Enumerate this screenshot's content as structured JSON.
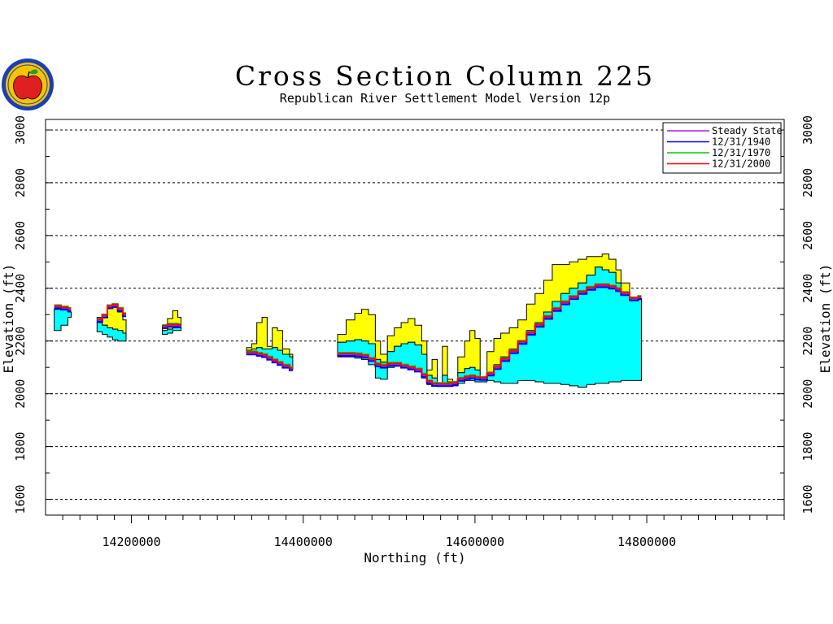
{
  "logo": {
    "icon": "apple-seal-icon",
    "colors": {
      "ring": "#1a3fb5",
      "fill": "#f5c400",
      "apple": "#e02020",
      "leaf": "#22a020"
    }
  },
  "chart_data": {
    "type": "area",
    "title": "Cross Section Column 225",
    "subtitle": "Republican River Settlement Model Version 12p",
    "xlabel": "Northing (ft)",
    "ylabel": "Elevation (ft)",
    "xlim": [
      14100000,
      14960000
    ],
    "ylim": [
      1540,
      3040
    ],
    "xticks": [
      {
        "value": 14200000,
        "label": "14200000"
      },
      {
        "value": 14400000,
        "label": "14400000"
      },
      {
        "value": 14600000,
        "label": "14600000"
      },
      {
        "value": 14800000,
        "label": "14800000"
      }
    ],
    "yticks": [
      {
        "value": 1600,
        "label": "1600"
      },
      {
        "value": 1800,
        "label": "1800"
      },
      {
        "value": 2000,
        "label": "2000"
      },
      {
        "value": 2200,
        "label": "2200"
      },
      {
        "value": 2400,
        "label": "2400"
      },
      {
        "value": 2600,
        "label": "2600"
      },
      {
        "value": 2800,
        "label": "2800"
      },
      {
        "value": 3000,
        "label": "3000"
      }
    ],
    "grid": "horizontal-dashed",
    "legend_position": "top-right",
    "colors": {
      "upper_layer": "#ffff00",
      "lower_layer": "#00ffff",
      "outline": "#000000"
    },
    "series": [
      {
        "name": "Steady State",
        "color": "#a020f0"
      },
      {
        "name": "12/31/1940",
        "color": "#0000ff"
      },
      {
        "name": "12/31/1970",
        "color": "#00cc00"
      },
      {
        "name": "12/31/2000",
        "color": "#ff0000"
      }
    ],
    "segments": [
      {
        "x": [
          14110000,
          14126000
        ],
        "top": [
          [
            14110000,
            2320
          ],
          [
            14118000,
            2325
          ],
          [
            14126000,
            2310
          ]
        ],
        "mid": [
          [
            14110000,
            2320
          ],
          [
            14118000,
            2325
          ],
          [
            14126000,
            2310
          ]
        ],
        "bottom": [
          [
            14110000,
            2240
          ],
          [
            14118000,
            2260
          ],
          [
            14126000,
            2290
          ]
        ],
        "head": [
          [
            14110000,
            2330
          ],
          [
            14118000,
            2325
          ],
          [
            14126000,
            2320
          ]
        ],
        "steady": [
          14110000,
          14126000
        ]
      },
      {
        "x": [
          14160000,
          14190000
        ],
        "top": [
          [
            14160000,
            2290
          ],
          [
            14166000,
            2300
          ],
          [
            14172000,
            2330
          ],
          [
            14178000,
            2330
          ],
          [
            14184000,
            2310
          ],
          [
            14190000,
            2280
          ]
        ],
        "mid": [
          [
            14160000,
            2270
          ],
          [
            14166000,
            2260
          ],
          [
            14172000,
            2250
          ],
          [
            14178000,
            2245
          ],
          [
            14184000,
            2240
          ],
          [
            14190000,
            2230
          ]
        ],
        "bottom": [
          [
            14160000,
            2235
          ],
          [
            14166000,
            2225
          ],
          [
            14172000,
            2215
          ],
          [
            14178000,
            2205
          ],
          [
            14184000,
            2200
          ],
          [
            14190000,
            2200
          ]
        ],
        "head": [
          [
            14160000,
            2280
          ],
          [
            14166000,
            2295
          ],
          [
            14172000,
            2330
          ],
          [
            14178000,
            2335
          ],
          [
            14184000,
            2320
          ],
          [
            14190000,
            2300
          ]
        ]
      },
      {
        "x": [
          14236000,
          14254000
        ],
        "top": [
          [
            14236000,
            2260
          ],
          [
            14242000,
            2285
          ],
          [
            14248000,
            2315
          ],
          [
            14254000,
            2290
          ]
        ],
        "mid": [
          [
            14236000,
            2240
          ],
          [
            14242000,
            2245
          ],
          [
            14248000,
            2250
          ],
          [
            14254000,
            2250
          ]
        ],
        "bottom": [
          [
            14236000,
            2225
          ],
          [
            14242000,
            2230
          ],
          [
            14248000,
            2240
          ],
          [
            14254000,
            2240
          ]
        ],
        "head": [
          [
            14236000,
            2255
          ],
          [
            14242000,
            2260
          ],
          [
            14248000,
            2260
          ],
          [
            14254000,
            2258
          ]
        ]
      },
      {
        "x": [
          14334000,
          14384000
        ],
        "top": [
          [
            14334000,
            2175
          ],
          [
            14340000,
            2190
          ],
          [
            14346000,
            2270
          ],
          [
            14352000,
            2290
          ],
          [
            14358000,
            2180
          ],
          [
            14364000,
            2250
          ],
          [
            14370000,
            2240
          ],
          [
            14376000,
            2170
          ],
          [
            14384000,
            2150
          ]
        ],
        "mid": [
          [
            14334000,
            2165
          ],
          [
            14340000,
            2170
          ],
          [
            14346000,
            2175
          ],
          [
            14352000,
            2170
          ],
          [
            14358000,
            2170
          ],
          [
            14364000,
            2175
          ],
          [
            14370000,
            2165
          ],
          [
            14376000,
            2150
          ],
          [
            14384000,
            2140
          ]
        ],
        "bottom": [
          [
            14334000,
            2150
          ],
          [
            14340000,
            2150
          ],
          [
            14346000,
            2145
          ],
          [
            14352000,
            2140
          ],
          [
            14358000,
            2130
          ],
          [
            14364000,
            2120
          ],
          [
            14370000,
            2110
          ],
          [
            14376000,
            2100
          ],
          [
            14384000,
            2090
          ]
        ],
        "head": [
          [
            14334000,
            2155
          ],
          [
            14340000,
            2155
          ],
          [
            14346000,
            2150
          ],
          [
            14352000,
            2145
          ],
          [
            14358000,
            2135
          ],
          [
            14364000,
            2125
          ],
          [
            14370000,
            2115
          ],
          [
            14376000,
            2105
          ],
          [
            14384000,
            2095
          ]
        ]
      },
      {
        "x": [
          14440000,
          14790000
        ],
        "top": [
          [
            14440000,
            2225
          ],
          [
            14450000,
            2280
          ],
          [
            14460000,
            2305
          ],
          [
            14468000,
            2320
          ],
          [
            14476000,
            2300
          ],
          [
            14484000,
            2200
          ],
          [
            14490000,
            2150
          ],
          [
            14498000,
            2220
          ],
          [
            14506000,
            2250
          ],
          [
            14514000,
            2270
          ],
          [
            14522000,
            2285
          ],
          [
            14530000,
            2260
          ],
          [
            14538000,
            2200
          ],
          [
            14544000,
            2090
          ],
          [
            14550000,
            2130
          ],
          [
            14556000,
            2040
          ],
          [
            14562000,
            2180
          ],
          [
            14568000,
            2055
          ],
          [
            14574000,
            2040
          ],
          [
            14580000,
            2140
          ],
          [
            14588000,
            2200
          ],
          [
            14594000,
            2240
          ],
          [
            14600000,
            2210
          ],
          [
            14606000,
            2060
          ],
          [
            14614000,
            2160
          ],
          [
            14622000,
            2210
          ],
          [
            14630000,
            2230
          ],
          [
            14640000,
            2250
          ],
          [
            14650000,
            2280
          ],
          [
            14660000,
            2340
          ],
          [
            14670000,
            2380
          ],
          [
            14680000,
            2430
          ],
          [
            14690000,
            2490
          ],
          [
            14700000,
            2490
          ],
          [
            14710000,
            2500
          ],
          [
            14720000,
            2510
          ],
          [
            14730000,
            2520
          ],
          [
            14740000,
            2520
          ],
          [
            14748000,
            2530
          ],
          [
            14756000,
            2510
          ],
          [
            14764000,
            2470
          ],
          [
            14770000,
            2420
          ],
          [
            14780000,
            2360
          ],
          [
            14790000,
            2350
          ]
        ],
        "mid": [
          [
            14440000,
            2195
          ],
          [
            14450000,
            2200
          ],
          [
            14460000,
            2205
          ],
          [
            14468000,
            2200
          ],
          [
            14476000,
            2190
          ],
          [
            14484000,
            2130
          ],
          [
            14490000,
            2120
          ],
          [
            14498000,
            2160
          ],
          [
            14506000,
            2180
          ],
          [
            14514000,
            2190
          ],
          [
            14522000,
            2195
          ],
          [
            14530000,
            2185
          ],
          [
            14538000,
            2150
          ],
          [
            14544000,
            2070
          ],
          [
            14550000,
            2060
          ],
          [
            14556000,
            2040
          ],
          [
            14562000,
            2070
          ],
          [
            14568000,
            2045
          ],
          [
            14574000,
            2040
          ],
          [
            14580000,
            2080
          ],
          [
            14588000,
            2095
          ],
          [
            14594000,
            2100
          ],
          [
            14600000,
            2090
          ],
          [
            14606000,
            2060
          ],
          [
            14614000,
            2080
          ],
          [
            14622000,
            2110
          ],
          [
            14630000,
            2140
          ],
          [
            14640000,
            2170
          ],
          [
            14650000,
            2200
          ],
          [
            14660000,
            2240
          ],
          [
            14670000,
            2270
          ],
          [
            14680000,
            2310
          ],
          [
            14690000,
            2350
          ],
          [
            14700000,
            2380
          ],
          [
            14710000,
            2400
          ],
          [
            14720000,
            2420
          ],
          [
            14730000,
            2450
          ],
          [
            14740000,
            2480
          ],
          [
            14748000,
            2470
          ],
          [
            14756000,
            2460
          ],
          [
            14764000,
            2420
          ],
          [
            14770000,
            2380
          ],
          [
            14780000,
            2360
          ],
          [
            14790000,
            2360
          ]
        ],
        "bottom": [
          [
            14440000,
            2140
          ],
          [
            14450000,
            2140
          ],
          [
            14460000,
            2135
          ],
          [
            14468000,
            2130
          ],
          [
            14476000,
            2110
          ],
          [
            14484000,
            2060
          ],
          [
            14490000,
            2055
          ],
          [
            14498000,
            2100
          ],
          [
            14506000,
            2105
          ],
          [
            14514000,
            2100
          ],
          [
            14522000,
            2095
          ],
          [
            14530000,
            2085
          ],
          [
            14538000,
            2060
          ],
          [
            14544000,
            2035
          ],
          [
            14550000,
            2030
          ],
          [
            14556000,
            2030
          ],
          [
            14562000,
            2030
          ],
          [
            14568000,
            2030
          ],
          [
            14574000,
            2030
          ],
          [
            14580000,
            2040
          ],
          [
            14588000,
            2050
          ],
          [
            14594000,
            2050
          ],
          [
            14600000,
            2045
          ],
          [
            14606000,
            2045
          ],
          [
            14614000,
            2050
          ],
          [
            14622000,
            2045
          ],
          [
            14630000,
            2040
          ],
          [
            14640000,
            2040
          ],
          [
            14650000,
            2050
          ],
          [
            14660000,
            2050
          ],
          [
            14670000,
            2045
          ],
          [
            14680000,
            2040
          ],
          [
            14690000,
            2040
          ],
          [
            14700000,
            2035
          ],
          [
            14710000,
            2030
          ],
          [
            14720000,
            2025
          ],
          [
            14730000,
            2035
          ],
          [
            14740000,
            2040
          ],
          [
            14748000,
            2040
          ],
          [
            14756000,
            2045
          ],
          [
            14764000,
            2045
          ],
          [
            14770000,
            2050
          ],
          [
            14780000,
            2050
          ],
          [
            14790000,
            2050
          ]
        ],
        "head": [
          [
            14440000,
            2150
          ],
          [
            14450000,
            2150
          ],
          [
            14460000,
            2148
          ],
          [
            14468000,
            2143
          ],
          [
            14476000,
            2130
          ],
          [
            14484000,
            2110
          ],
          [
            14490000,
            2105
          ],
          [
            14498000,
            2112
          ],
          [
            14506000,
            2112
          ],
          [
            14514000,
            2105
          ],
          [
            14522000,
            2098
          ],
          [
            14530000,
            2090
          ],
          [
            14538000,
            2070
          ],
          [
            14544000,
            2045
          ],
          [
            14550000,
            2036
          ],
          [
            14556000,
            2035
          ],
          [
            14562000,
            2035
          ],
          [
            14568000,
            2035
          ],
          [
            14574000,
            2040
          ],
          [
            14580000,
            2055
          ],
          [
            14588000,
            2062
          ],
          [
            14594000,
            2065
          ],
          [
            14600000,
            2060
          ],
          [
            14606000,
            2058
          ],
          [
            14614000,
            2075
          ],
          [
            14622000,
            2100
          ],
          [
            14630000,
            2130
          ],
          [
            14640000,
            2160
          ],
          [
            14650000,
            2195
          ],
          [
            14660000,
            2230
          ],
          [
            14670000,
            2260
          ],
          [
            14680000,
            2290
          ],
          [
            14690000,
            2320
          ],
          [
            14700000,
            2345
          ],
          [
            14710000,
            2365
          ],
          [
            14720000,
            2385
          ],
          [
            14730000,
            2400
          ],
          [
            14740000,
            2410
          ],
          [
            14748000,
            2410
          ],
          [
            14756000,
            2405
          ],
          [
            14764000,
            2395
          ],
          [
            14770000,
            2380
          ],
          [
            14780000,
            2360
          ],
          [
            14790000,
            2365
          ]
        ]
      }
    ]
  }
}
